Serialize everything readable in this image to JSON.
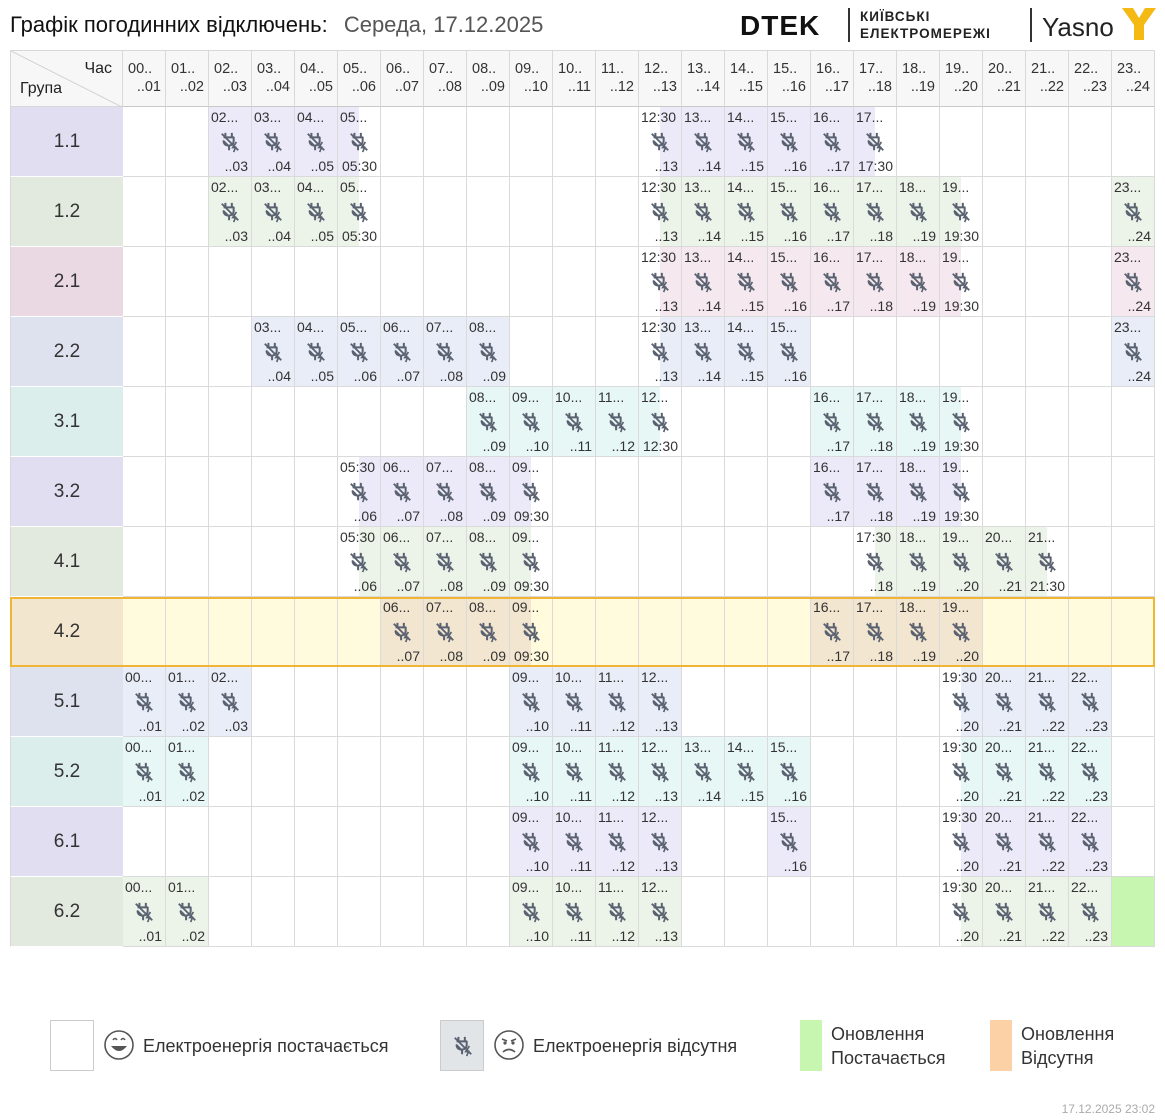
{
  "header": {
    "title": "Графік погодинних відключень:",
    "date": "Середа, 17.12.2025",
    "brand_dtek": "DTEK",
    "brand_kyiv_line1": "КИЇВСЬКІ",
    "brand_kyiv_line2": "ЕЛЕКТРОМЕРЕЖІ",
    "brand_yasno": "Yasno"
  },
  "table": {
    "corner_top": "Час",
    "corner_bottom": "Група",
    "hours": [
      {
        "start": "00..",
        "end": "..01"
      },
      {
        "start": "01..",
        "end": "..02"
      },
      {
        "start": "02..",
        "end": "..03"
      },
      {
        "start": "03..",
        "end": "..04"
      },
      {
        "start": "04..",
        "end": "..05"
      },
      {
        "start": "05..",
        "end": "..06"
      },
      {
        "start": "06..",
        "end": "..07"
      },
      {
        "start": "07..",
        "end": "..08"
      },
      {
        "start": "08..",
        "end": "..09"
      },
      {
        "start": "09..",
        "end": "..10"
      },
      {
        "start": "10..",
        "end": "..11"
      },
      {
        "start": "11..",
        "end": "..12"
      },
      {
        "start": "12..",
        "end": "..13"
      },
      {
        "start": "13..",
        "end": "..14"
      },
      {
        "start": "14..",
        "end": "..15"
      },
      {
        "start": "15..",
        "end": "..16"
      },
      {
        "start": "16..",
        "end": "..17"
      },
      {
        "start": "17..",
        "end": "..18"
      },
      {
        "start": "18..",
        "end": "..19"
      },
      {
        "start": "19..",
        "end": "..20"
      },
      {
        "start": "20..",
        "end": "..21"
      },
      {
        "start": "21..",
        "end": "..22"
      },
      {
        "start": "22..",
        "end": "..23"
      },
      {
        "start": "23..",
        "end": "..24"
      }
    ],
    "selected_group": "4.2",
    "groups": [
      {
        "name": "1.1",
        "color": "#e0def0",
        "light": "#eceaf8",
        "outages": [
          {
            "h": 2,
            "s": "02...",
            "e": "..03"
          },
          {
            "h": 3,
            "s": "03...",
            "e": "..04"
          },
          {
            "h": 4,
            "s": "04...",
            "e": "..05"
          },
          {
            "h": 5,
            "s": "05...",
            "e": "05:30",
            "part": "first"
          },
          {
            "h": 12,
            "s": "12:30",
            "e": "..13",
            "part": "second"
          },
          {
            "h": 13,
            "s": "13...",
            "e": "..14"
          },
          {
            "h": 14,
            "s": "14...",
            "e": "..15"
          },
          {
            "h": 15,
            "s": "15...",
            "e": "..16"
          },
          {
            "h": 16,
            "s": "16...",
            "e": "..17"
          },
          {
            "h": 17,
            "s": "17...",
            "e": "17:30",
            "part": "first"
          }
        ]
      },
      {
        "name": "1.2",
        "color": "#e2eadf",
        "light": "#ecf3e9",
        "outages": [
          {
            "h": 2,
            "s": "02...",
            "e": "..03"
          },
          {
            "h": 3,
            "s": "03...",
            "e": "..04"
          },
          {
            "h": 4,
            "s": "04...",
            "e": "..05"
          },
          {
            "h": 5,
            "s": "05...",
            "e": "05:30",
            "part": "first"
          },
          {
            "h": 12,
            "s": "12:30",
            "e": "..13",
            "part": "second"
          },
          {
            "h": 13,
            "s": "13...",
            "e": "..14"
          },
          {
            "h": 14,
            "s": "14...",
            "e": "..15"
          },
          {
            "h": 15,
            "s": "15...",
            "e": "..16"
          },
          {
            "h": 16,
            "s": "16...",
            "e": "..17"
          },
          {
            "h": 17,
            "s": "17...",
            "e": "..18"
          },
          {
            "h": 18,
            "s": "18...",
            "e": "..19"
          },
          {
            "h": 19,
            "s": "19...",
            "e": "19:30",
            "part": "first"
          },
          {
            "h": 23,
            "s": "23...",
            "e": "..24"
          }
        ]
      },
      {
        "name": "2.1",
        "color": "#ead9e2",
        "light": "#f5e9ef",
        "outages": [
          {
            "h": 12,
            "s": "12:30",
            "e": "..13",
            "part": "second"
          },
          {
            "h": 13,
            "s": "13...",
            "e": "..14"
          },
          {
            "h": 14,
            "s": "14...",
            "e": "..15"
          },
          {
            "h": 15,
            "s": "15...",
            "e": "..16"
          },
          {
            "h": 16,
            "s": "16...",
            "e": "..17"
          },
          {
            "h": 17,
            "s": "17...",
            "e": "..18"
          },
          {
            "h": 18,
            "s": "18...",
            "e": "..19"
          },
          {
            "h": 19,
            "s": "19...",
            "e": "19:30",
            "part": "first"
          },
          {
            "h": 23,
            "s": "23...",
            "e": "..24"
          }
        ]
      },
      {
        "name": "2.2",
        "color": "#dee2ee",
        "light": "#e9edf8",
        "outages": [
          {
            "h": 3,
            "s": "03...",
            "e": "..04"
          },
          {
            "h": 4,
            "s": "04...",
            "e": "..05"
          },
          {
            "h": 5,
            "s": "05...",
            "e": "..06"
          },
          {
            "h": 6,
            "s": "06...",
            "e": "..07"
          },
          {
            "h": 7,
            "s": "07...",
            "e": "..08"
          },
          {
            "h": 8,
            "s": "08...",
            "e": "..09"
          },
          {
            "h": 12,
            "s": "12:30",
            "e": "..13",
            "part": "second"
          },
          {
            "h": 13,
            "s": "13...",
            "e": "..14"
          },
          {
            "h": 14,
            "s": "14...",
            "e": "..15"
          },
          {
            "h": 15,
            "s": "15...",
            "e": "..16"
          },
          {
            "h": 23,
            "s": "23...",
            "e": "..24"
          }
        ]
      },
      {
        "name": "3.1",
        "color": "#dbeeec",
        "light": "#e7f7f5",
        "outages": [
          {
            "h": 8,
            "s": "08...",
            "e": "..09"
          },
          {
            "h": 9,
            "s": "09...",
            "e": "..10"
          },
          {
            "h": 10,
            "s": "10...",
            "e": "..11"
          },
          {
            "h": 11,
            "s": "11...",
            "e": "..12"
          },
          {
            "h": 12,
            "s": "12...",
            "e": "12:30",
            "part": "first"
          },
          {
            "h": 16,
            "s": "16...",
            "e": "..17"
          },
          {
            "h": 17,
            "s": "17...",
            "e": "..18"
          },
          {
            "h": 18,
            "s": "18...",
            "e": "..19"
          },
          {
            "h": 19,
            "s": "19...",
            "e": "19:30",
            "part": "first"
          }
        ]
      },
      {
        "name": "3.2",
        "color": "#e0def0",
        "light": "#eceaf8",
        "outages": [
          {
            "h": 5,
            "s": "05:30",
            "e": "..06",
            "part": "second"
          },
          {
            "h": 6,
            "s": "06...",
            "e": "..07"
          },
          {
            "h": 7,
            "s": "07...",
            "e": "..08"
          },
          {
            "h": 8,
            "s": "08...",
            "e": "..09"
          },
          {
            "h": 9,
            "s": "09...",
            "e": "09:30",
            "part": "first"
          },
          {
            "h": 16,
            "s": "16...",
            "e": "..17"
          },
          {
            "h": 17,
            "s": "17...",
            "e": "..18"
          },
          {
            "h": 18,
            "s": "18...",
            "e": "..19"
          },
          {
            "h": 19,
            "s": "19...",
            "e": "19:30",
            "part": "first"
          }
        ]
      },
      {
        "name": "4.1",
        "color": "#e2eadf",
        "light": "#ecf3e9",
        "outages": [
          {
            "h": 5,
            "s": "05:30",
            "e": "..06",
            "part": "second"
          },
          {
            "h": 6,
            "s": "06...",
            "e": "..07"
          },
          {
            "h": 7,
            "s": "07...",
            "e": "..08"
          },
          {
            "h": 8,
            "s": "08...",
            "e": "..09"
          },
          {
            "h": 9,
            "s": "09...",
            "e": "09:30",
            "part": "first"
          },
          {
            "h": 17,
            "s": "17:30",
            "e": "..18",
            "part": "second"
          },
          {
            "h": 18,
            "s": "18...",
            "e": "..19"
          },
          {
            "h": 19,
            "s": "19...",
            "e": "..20"
          },
          {
            "h": 20,
            "s": "20...",
            "e": "..21"
          },
          {
            "h": 21,
            "s": "21...",
            "e": "21:30",
            "part": "first"
          }
        ]
      },
      {
        "name": "4.2",
        "color": "#f2e6cf",
        "light": "#f3e6d0",
        "row_bg": "#fffbdc",
        "outages": [
          {
            "h": 6,
            "s": "06...",
            "e": "..07"
          },
          {
            "h": 7,
            "s": "07...",
            "e": "..08"
          },
          {
            "h": 8,
            "s": "08...",
            "e": "..09"
          },
          {
            "h": 9,
            "s": "09...",
            "e": "09:30",
            "part": "first"
          },
          {
            "h": 16,
            "s": "16...",
            "e": "..17"
          },
          {
            "h": 17,
            "s": "17...",
            "e": "..18"
          },
          {
            "h": 18,
            "s": "18...",
            "e": "..19"
          },
          {
            "h": 19,
            "s": "19...",
            "e": "..20"
          }
        ]
      },
      {
        "name": "5.1",
        "color": "#dee2ee",
        "light": "#e9edf8",
        "outages": [
          {
            "h": 0,
            "s": "00...",
            "e": "..01"
          },
          {
            "h": 1,
            "s": "01...",
            "e": "..02"
          },
          {
            "h": 2,
            "s": "02...",
            "e": "..03"
          },
          {
            "h": 9,
            "s": "09...",
            "e": "..10"
          },
          {
            "h": 10,
            "s": "10...",
            "e": "..11"
          },
          {
            "h": 11,
            "s": "11...",
            "e": "..12"
          },
          {
            "h": 12,
            "s": "12...",
            "e": "..13"
          },
          {
            "h": 19,
            "s": "19:30",
            "e": "..20",
            "part": "second"
          },
          {
            "h": 20,
            "s": "20...",
            "e": "..21"
          },
          {
            "h": 21,
            "s": "21...",
            "e": "..22"
          },
          {
            "h": 22,
            "s": "22...",
            "e": "..23"
          }
        ]
      },
      {
        "name": "5.2",
        "color": "#dbeeec",
        "light": "#e7f7f5",
        "outages": [
          {
            "h": 0,
            "s": "00...",
            "e": "..01"
          },
          {
            "h": 1,
            "s": "01...",
            "e": "..02"
          },
          {
            "h": 9,
            "s": "09...",
            "e": "..10"
          },
          {
            "h": 10,
            "s": "10...",
            "e": "..11"
          },
          {
            "h": 11,
            "s": "11...",
            "e": "..12"
          },
          {
            "h": 12,
            "s": "12...",
            "e": "..13"
          },
          {
            "h": 13,
            "s": "13...",
            "e": "..14"
          },
          {
            "h": 14,
            "s": "14...",
            "e": "..15"
          },
          {
            "h": 15,
            "s": "15...",
            "e": "..16"
          },
          {
            "h": 19,
            "s": "19:30",
            "e": "..20",
            "part": "second"
          },
          {
            "h": 20,
            "s": "20...",
            "e": "..21"
          },
          {
            "h": 21,
            "s": "21...",
            "e": "..22"
          },
          {
            "h": 22,
            "s": "22...",
            "e": "..23"
          }
        ]
      },
      {
        "name": "6.1",
        "color": "#e0def0",
        "light": "#eceaf8",
        "outages": [
          {
            "h": 9,
            "s": "09...",
            "e": "..10"
          },
          {
            "h": 10,
            "s": "10...",
            "e": "..11"
          },
          {
            "h": 11,
            "s": "11...",
            "e": "..12"
          },
          {
            "h": 12,
            "s": "12...",
            "e": "..13"
          },
          {
            "h": 15,
            "s": "15...",
            "e": "..16"
          },
          {
            "h": 19,
            "s": "19:30",
            "e": "..20",
            "part": "second"
          },
          {
            "h": 20,
            "s": "20...",
            "e": "..21"
          },
          {
            "h": 21,
            "s": "21...",
            "e": "..22"
          },
          {
            "h": 22,
            "s": "22...",
            "e": "..23"
          }
        ]
      },
      {
        "name": "6.2",
        "color": "#e2eadf",
        "light": "#ecf3e9",
        "outages": [
          {
            "h": 0,
            "s": "00...",
            "e": "..01"
          },
          {
            "h": 1,
            "s": "01...",
            "e": "..02"
          },
          {
            "h": 9,
            "s": "09...",
            "e": "..10"
          },
          {
            "h": 10,
            "s": "10...",
            "e": "..11"
          },
          {
            "h": 11,
            "s": "11...",
            "e": "..12"
          },
          {
            "h": 12,
            "s": "12...",
            "e": "..13"
          },
          {
            "h": 19,
            "s": "19:30",
            "e": "..20",
            "part": "second"
          },
          {
            "h": 20,
            "s": "20...",
            "e": "..21"
          },
          {
            "h": 21,
            "s": "21...",
            "e": "..22"
          },
          {
            "h": 22,
            "s": "22...",
            "e": "..23"
          }
        ],
        "updates": [
          {
            "h": 23,
            "status": "on"
          }
        ]
      }
    ]
  },
  "legend": {
    "power_on": "Електроенергія постачається",
    "power_off": "Електроенергія відсутня",
    "update_on_line1": "Оновлення",
    "update_on_line2": "Постачається",
    "update_off_line1": "Оновлення",
    "update_off_line2": "Відсутня"
  },
  "colors": {
    "update_on": "#c6f6b0",
    "update_off": "#fcd1a6",
    "highlight_border": "#f0b535",
    "icon": "#5a6170"
  },
  "footer": {
    "timestamp": "17.12.2025   23:02"
  }
}
